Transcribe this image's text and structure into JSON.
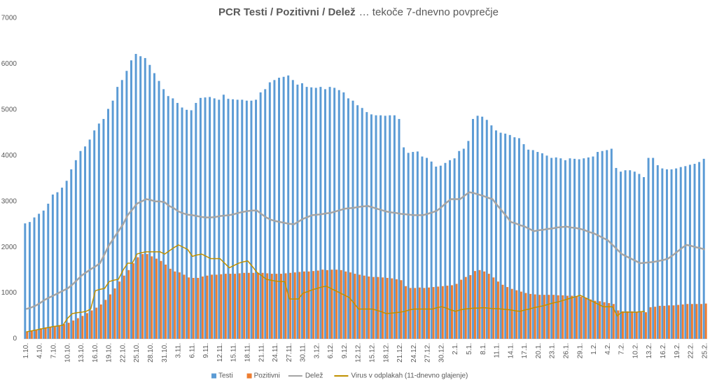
{
  "chart_data": {
    "type": "bar",
    "title": "PCR Testi / Pozitivni / Delež",
    "subtitle": "… tekoče 7-dnevno povprečje",
    "ylim": [
      0,
      7000
    ],
    "yticks": [
      0,
      1000,
      2000,
      3000,
      4000,
      5000,
      6000,
      7000
    ],
    "grid": false,
    "legend": "bottom",
    "categories": [
      "1.10.",
      null,
      null,
      "4.10.",
      null,
      null,
      "7.10.",
      null,
      null,
      "10.10.",
      null,
      null,
      "13.10.",
      null,
      null,
      "16.10.",
      null,
      null,
      "19.10.",
      null,
      null,
      "22.10.",
      null,
      null,
      "25.10.",
      null,
      null,
      "28.10.",
      null,
      null,
      "31.10.",
      null,
      null,
      "3.11.",
      null,
      null,
      "6.11.",
      null,
      null,
      "9.11.",
      null,
      null,
      "12.11.",
      null,
      null,
      "15.11.",
      null,
      null,
      "18.11.",
      null,
      null,
      "21.11.",
      null,
      null,
      "24.11.",
      null,
      null,
      "27.11.",
      null,
      null,
      "30.11.",
      null,
      null,
      "3.12.",
      null,
      null,
      "6.12.",
      null,
      null,
      "9.12.",
      null,
      null,
      "12.12.",
      null,
      null,
      "15.12.",
      null,
      null,
      "18.12.",
      null,
      null,
      "21.12.",
      null,
      null,
      "24.12.",
      null,
      null,
      "27.12.",
      null,
      null,
      "30.12.",
      null,
      null,
      "2.1.",
      null,
      null,
      "5.1.",
      null,
      null,
      "8.1.",
      null,
      null,
      "11.1.",
      null,
      null,
      "14.1.",
      null,
      null,
      "17.1.",
      null,
      null,
      "20.1.",
      null,
      null,
      "23.1.",
      null,
      null,
      "26.1.",
      null,
      null,
      "29.1.",
      null,
      null,
      "1.2.",
      null,
      null,
      "4.2.",
      null,
      null,
      "7.2.",
      null,
      null,
      "10.2.",
      null,
      null,
      "13.2.",
      null,
      null,
      "16.2.",
      null,
      null,
      "19.2.",
      null,
      null,
      "22.2.",
      null,
      null,
      "25.2."
    ],
    "series": [
      {
        "name": "Testi",
        "type": "bar",
        "color": "#5b9bd5",
        "values": [
          2520,
          2550,
          2650,
          2730,
          2800,
          2950,
          3150,
          3200,
          3300,
          3450,
          3700,
          3900,
          4100,
          4200,
          4350,
          4550,
          4700,
          4800,
          5020,
          5200,
          5500,
          5650,
          5850,
          6080,
          6220,
          6170,
          6130,
          5980,
          5800,
          5630,
          5450,
          5300,
          5250,
          5150,
          5050,
          5000,
          4990,
          5150,
          5260,
          5270,
          5280,
          5250,
          5220,
          5330,
          5240,
          5230,
          5220,
          5220,
          5200,
          5200,
          5220,
          5380,
          5450,
          5600,
          5650,
          5700,
          5720,
          5750,
          5650,
          5550,
          5580,
          5500,
          5490,
          5480,
          5500,
          5450,
          5500,
          5480,
          5430,
          5380,
          5250,
          5200,
          5100,
          5040,
          4950,
          4900,
          4880,
          4880,
          4870,
          4880,
          4880,
          4800,
          4180,
          4060,
          4080,
          4090,
          3980,
          3950,
          3870,
          3760,
          3780,
          3840,
          3900,
          3940,
          4100,
          4150,
          4320,
          4800,
          4870,
          4850,
          4780,
          4660,
          4550,
          4500,
          4480,
          4450,
          4400,
          4380,
          4250,
          4130,
          4120,
          4080,
          4050,
          4000,
          3950,
          3960,
          3940,
          3900,
          3940,
          3930,
          3920,
          3940,
          3960,
          3980,
          4080,
          4100,
          4120,
          4150,
          3730,
          3650,
          3680,
          3680,
          3650,
          3600,
          3530,
          3950,
          3950,
          3790,
          3720,
          3700,
          3700,
          3720,
          3750,
          3770,
          3800,
          3820,
          3860,
          3930
        ]
      },
      {
        "name": "Pozitivni",
        "type": "bar",
        "color": "#ed7d31",
        "values": [
          150,
          170,
          190,
          230,
          250,
          260,
          280,
          300,
          320,
          350,
          400,
          450,
          500,
          560,
          620,
          680,
          750,
          850,
          970,
          1100,
          1250,
          1380,
          1500,
          1650,
          1780,
          1850,
          1850,
          1800,
          1750,
          1700,
          1620,
          1530,
          1470,
          1450,
          1400,
          1340,
          1330,
          1330,
          1360,
          1380,
          1400,
          1400,
          1410,
          1420,
          1420,
          1420,
          1430,
          1440,
          1440,
          1440,
          1440,
          1440,
          1430,
          1420,
          1420,
          1420,
          1430,
          1440,
          1450,
          1460,
          1470,
          1470,
          1480,
          1490,
          1510,
          1500,
          1510,
          1510,
          1500,
          1470,
          1450,
          1420,
          1400,
          1380,
          1360,
          1350,
          1350,
          1340,
          1330,
          1320,
          1300,
          1280,
          1150,
          1110,
          1110,
          1120,
          1110,
          1120,
          1130,
          1140,
          1150,
          1160,
          1170,
          1200,
          1290,
          1350,
          1390,
          1480,
          1500,
          1470,
          1420,
          1340,
          1250,
          1180,
          1130,
          1090,
          1060,
          1030,
          1000,
          980,
          970,
          960,
          960,
          960,
          960,
          950,
          950,
          940,
          940,
          930,
          920,
          900,
          860,
          830,
          820,
          800,
          780,
          760,
          620,
          600,
          600,
          600,
          590,
          580,
          580,
          690,
          700,
          720,
          720,
          730,
          730,
          740,
          750,
          760,
          760,
          760,
          760,
          770
        ]
      },
      {
        "name": "Delež",
        "type": "line",
        "color": "#a5a5a5",
        "values": [
          650,
          680,
          720,
          780,
          850,
          900,
          950,
          1000,
          1050,
          1100,
          1180,
          1280,
          1380,
          1450,
          1520,
          1580,
          1650,
          1850,
          2050,
          2200,
          2350,
          2500,
          2700,
          2820,
          2950,
          3000,
          3050,
          3030,
          3000,
          3000,
          2980,
          2900,
          2850,
          2780,
          2740,
          2710,
          2700,
          2680,
          2660,
          2650,
          2650,
          2660,
          2680,
          2690,
          2700,
          2720,
          2750,
          2770,
          2790,
          2800,
          2800,
          2720,
          2650,
          2600,
          2570,
          2550,
          2530,
          2510,
          2500,
          2560,
          2620,
          2660,
          2700,
          2710,
          2720,
          2740,
          2750,
          2780,
          2810,
          2840,
          2850,
          2860,
          2880,
          2890,
          2900,
          2870,
          2840,
          2810,
          2780,
          2760,
          2750,
          2730,
          2720,
          2710,
          2700,
          2700,
          2700,
          2730,
          2760,
          2800,
          2880,
          2970,
          3050,
          3050,
          3050,
          3130,
          3200,
          3180,
          3150,
          3120,
          3080,
          3050,
          2920,
          2800,
          2680,
          2550,
          2520,
          2480,
          2450,
          2400,
          2350,
          2370,
          2380,
          2400,
          2410,
          2430,
          2440,
          2450,
          2430,
          2420,
          2400,
          2370,
          2330,
          2300,
          2250,
          2200,
          2150,
          2050,
          1950,
          1850,
          1800,
          1750,
          1700,
          1650,
          1660,
          1670,
          1680,
          1700,
          1720,
          1750,
          1820,
          1900,
          1980,
          2050,
          2030,
          2000,
          1980,
          1950
        ]
      },
      {
        "name": "Virus v odplakah (11-dnevno glajenje)",
        "type": "line",
        "color": "#bf9000",
        "values": [
          150,
          170,
          190,
          210,
          230,
          250,
          270,
          280,
          300,
          450,
          550,
          570,
          580,
          600,
          650,
          1050,
          1080,
          1100,
          1250,
          1280,
          1300,
          1500,
          1650,
          1650,
          1850,
          1880,
          1900,
          1900,
          1900,
          1900,
          1850,
          1920,
          1990,
          2050,
          2000,
          1950,
          1800,
          1830,
          1850,
          1800,
          1750,
          1750,
          1750,
          1650,
          1550,
          1600,
          1650,
          1680,
          1700,
          1580,
          1450,
          1380,
          1300,
          1280,
          1260,
          1250,
          1250,
          870,
          870,
          870,
          1000,
          1030,
          1070,
          1100,
          1130,
          1150,
          1100,
          1050,
          1000,
          950,
          900,
          780,
          650,
          650,
          650,
          650,
          620,
          590,
          550,
          560,
          570,
          580,
          600,
          630,
          650,
          650,
          650,
          650,
          650,
          680,
          700,
          670,
          630,
          600,
          630,
          650,
          660,
          670,
          670,
          680,
          670,
          660,
          660,
          650,
          640,
          630,
          610,
          600,
          630,
          650,
          680,
          700,
          720,
          750,
          780,
          800,
          830,
          860,
          890,
          920,
          950,
          900,
          850,
          800,
          750,
          700,
          700,
          700,
          500,
          580,
          580,
          580,
          580,
          590,
          600,
          null,
          null,
          null,
          null,
          null,
          null,
          null,
          null,
          null,
          null,
          null,
          null,
          null
        ]
      }
    ]
  }
}
